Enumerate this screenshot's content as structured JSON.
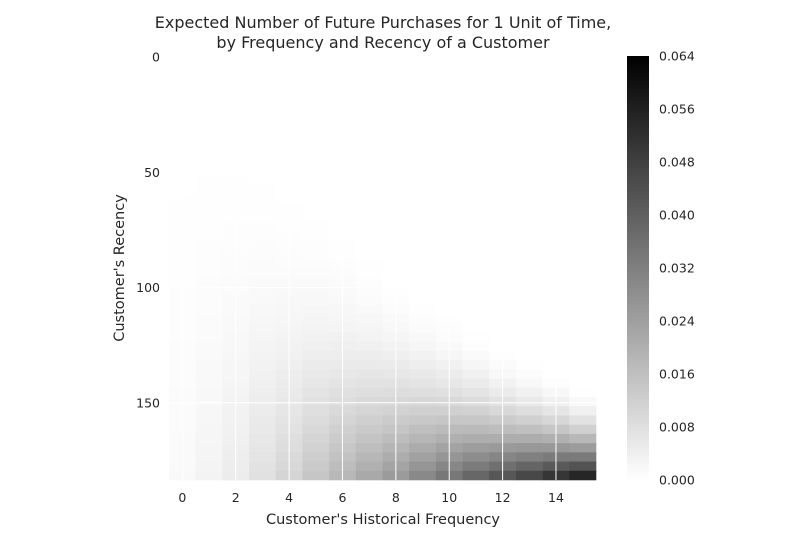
{
  "chart_data": {
    "type": "heatmap",
    "title": [
      "Expected Number of Future Purchases for 1 Unit of Time,",
      "by Frequency and Recency of a Customer"
    ],
    "xlabel": "Customer's Historical Frequency",
    "ylabel": "Customer's Recency",
    "x_ticks": [
      "0",
      "2",
      "4",
      "6",
      "8",
      "10",
      "12",
      "14"
    ],
    "y_ticks": [
      "0",
      "50",
      "100",
      "150"
    ],
    "x_range": [
      -0.5,
      15.5
    ],
    "y_range": [
      -0.5,
      183.5
    ],
    "grid": true,
    "colormap": "Greys (white to black)",
    "colorbar": {
      "range": [
        0.0,
        0.064
      ],
      "ticks": [
        "0.000",
        "0.008",
        "0.016",
        "0.024",
        "0.032",
        "0.040",
        "0.048",
        "0.056",
        "0.064"
      ]
    },
    "frequency_columns": [
      0,
      1,
      2,
      3,
      4,
      5,
      6,
      7,
      8,
      9,
      10,
      11,
      12,
      13,
      14,
      15
    ],
    "max_value_by_frequency": [
      0.0015,
      0.003,
      0.005,
      0.008,
      0.011,
      0.015,
      0.019,
      0.023,
      0.027,
      0.032,
      0.037,
      0.042,
      0.047,
      0.052,
      0.058,
      0.064
    ],
    "min_recency_by_frequency": [
      0,
      10,
      20,
      32,
      44,
      55,
      67,
      78,
      88,
      98,
      106,
      114,
      122,
      128,
      134,
      140
    ],
    "max_recency": 183
  }
}
